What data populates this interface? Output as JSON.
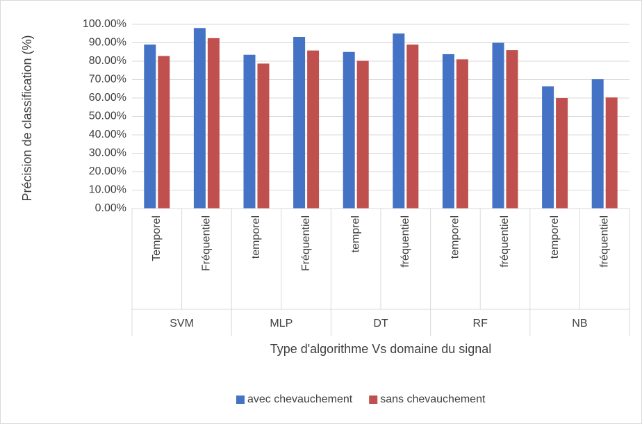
{
  "chart_data": {
    "type": "bar",
    "y_label": "Précision de classification (%)",
    "x_label": "Type d'algorithme Vs domaine du signal",
    "groups": [
      "SVM",
      "MLP",
      "DT",
      "RF",
      "NB"
    ],
    "categories": [
      "Temporel",
      "Fréquentiel",
      "temporel",
      "Fréquentiel",
      "temprel",
      "fréquentiel",
      "temporel",
      "fréquentiel",
      "temporel",
      "fréquentiel"
    ],
    "series": [
      {
        "name": "avec chevauchement",
        "color": "#4472c4",
        "values": [
          89,
          98,
          83.5,
          93.2,
          85,
          95,
          83.8,
          90,
          66.3,
          70.2
        ]
      },
      {
        "name": "sans chevauchement",
        "color": "#c0504d",
        "values": [
          82.8,
          92.5,
          78.7,
          85.8,
          80.2,
          89,
          81,
          86,
          60,
          60.3
        ]
      }
    ],
    "ylim": [
      0,
      100
    ],
    "yticks": [
      {
        "value": 0,
        "label": "0.00%"
      },
      {
        "value": 10,
        "label": "10.00%"
      },
      {
        "value": 20,
        "label": "20.00%"
      },
      {
        "value": 30,
        "label": "30.00%"
      },
      {
        "value": 40,
        "label": "40.00%"
      },
      {
        "value": 50,
        "label": "50.00%"
      },
      {
        "value": 60,
        "label": "60.00%"
      },
      {
        "value": 70,
        "label": "70.00%"
      },
      {
        "value": 80,
        "label": "80.00%"
      },
      {
        "value": 90,
        "label": "90.00%"
      },
      {
        "value": 100,
        "label": "100.00%"
      }
    ],
    "grid": true,
    "legend": "bottom"
  }
}
